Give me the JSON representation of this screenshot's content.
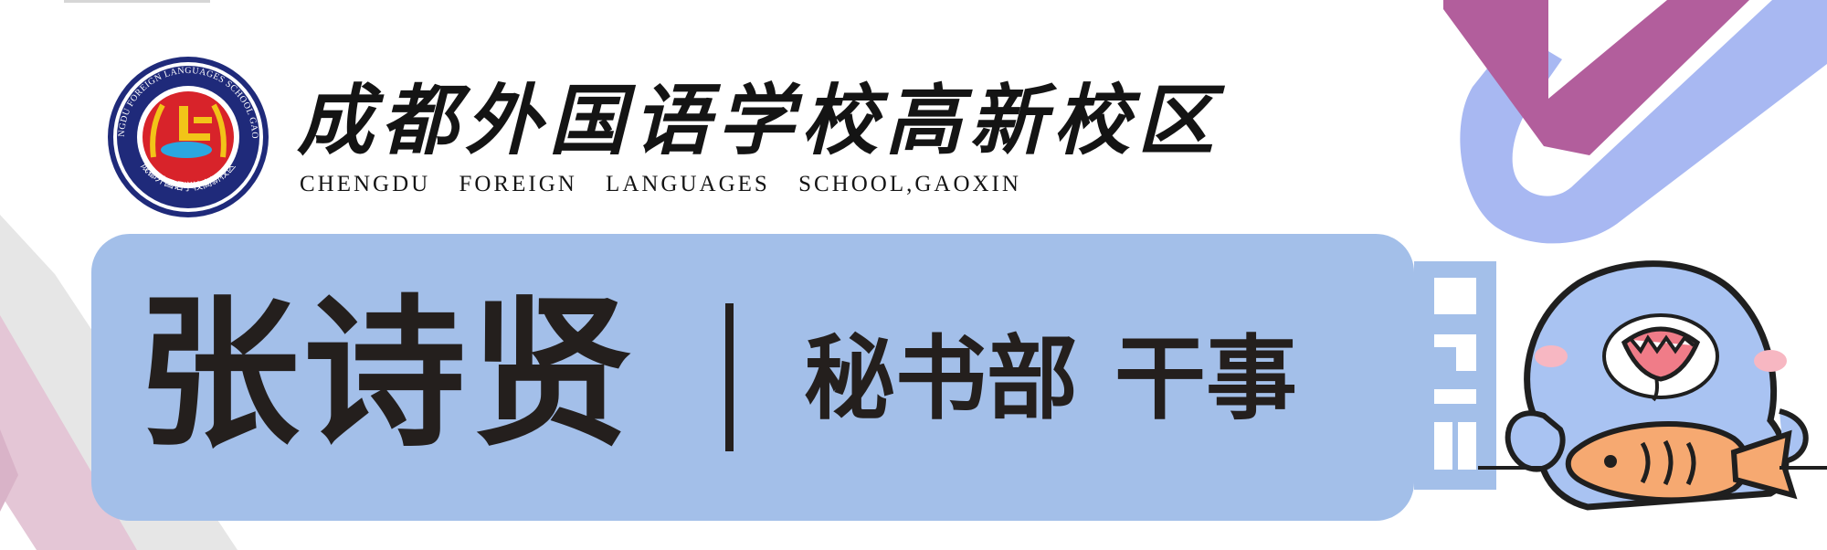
{
  "school": {
    "name_cn": "成都外国语学校高新校区",
    "name_en": "CHENGDU FOREIGN LANGUAGES SCHOOL,GAOXIN",
    "emblem_ring_text": "CHENGDU FOREIGN LANGUAGES SCHOOL GAOXIN",
    "emblem_bottom_text": "成都外国语学校高新校区"
  },
  "person": {
    "name": "张诗贤",
    "department": "秘书部",
    "position": "干事"
  },
  "colors": {
    "banner": "#a3bfe9",
    "text_dark": "#241f1d",
    "emblem_navy": "#1f2a7a",
    "emblem_red": "#d8232a",
    "emblem_gold": "#f2c418",
    "deco_purple": "#b25e9c",
    "deco_blue": "#a8b8f2",
    "deco_pink": "#e4c6d6"
  },
  "icons": [
    "school-emblem-icon",
    "whale-mascot-icon"
  ]
}
